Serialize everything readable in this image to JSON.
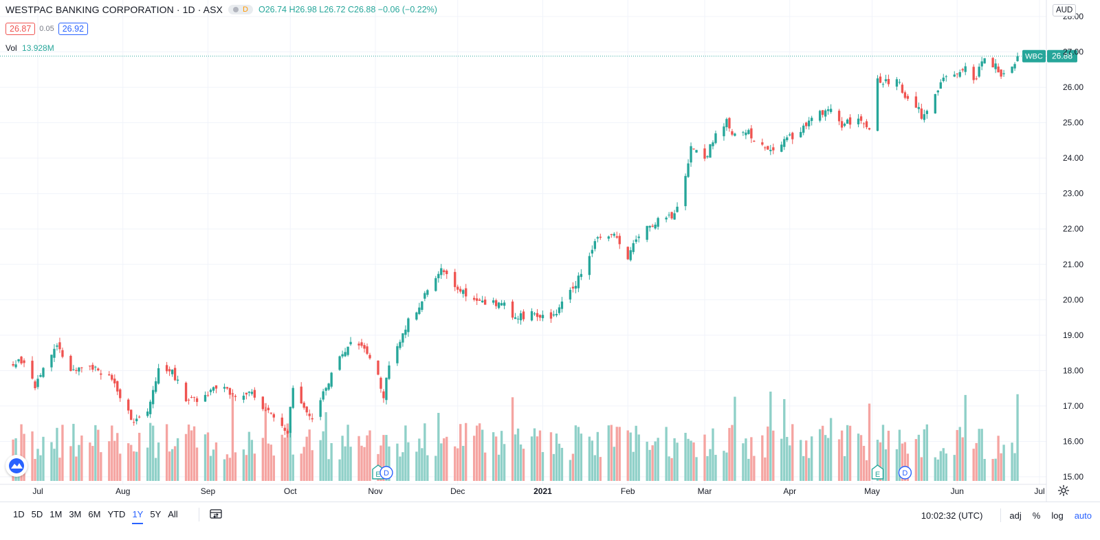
{
  "header": {
    "symbol_title": "WESTPAC BANKING CORPORATION · 1D · ASX",
    "data_badge": "D",
    "ohlc": {
      "open_label": "O",
      "open": "26.74",
      "high_label": "H",
      "high": "26.98",
      "low_label": "L",
      "low": "26.72",
      "close_label": "C",
      "close": "26.88",
      "change": "−0.06 (−0.22%)"
    },
    "bid": "26.87",
    "spread": "0.05",
    "ask": "26.92",
    "volume_label": "Vol",
    "volume_value": "13.928M"
  },
  "price_axis": {
    "currency_button": "AUD",
    "ticks": [
      "28.00",
      "27.00",
      "26.00",
      "25.00",
      "24.00",
      "23.00",
      "22.00",
      "21.00",
      "20.00",
      "19.00",
      "18.00",
      "17.00",
      "16.00",
      "15.00"
    ],
    "last_price_symbol": "WBC",
    "last_price": "26.88"
  },
  "event_markers": [
    {
      "type": "E",
      "date": "Nov 2"
    },
    {
      "type": "D",
      "date": "Nov 5"
    },
    {
      "type": "E",
      "date": "May 3"
    },
    {
      "type": "D",
      "date": "May 13"
    }
  ],
  "toolbar": {
    "ranges": [
      "1D",
      "5D",
      "1M",
      "3M",
      "6M",
      "YTD",
      "1Y",
      "5Y",
      "All"
    ],
    "active_range": "1Y",
    "clock": "10:02:32 (UTC)",
    "adj": "adj",
    "percent": "%",
    "log": "log",
    "auto": "auto"
  },
  "colors": {
    "up": "#26a69a",
    "down": "#ef5350",
    "up_volume": "#8fd0c8",
    "down_volume": "#f5a4a1",
    "grid": "#f0f3fa",
    "accent": "#2962ff"
  },
  "chart_data": {
    "type": "candlestick",
    "title": "WESTPAC BANKING CORPORATION · 1D · ASX",
    "currency": "AUD",
    "ylim": [
      15.0,
      28.0
    ],
    "grid": true,
    "x_tick_labels": [
      "Jul",
      "Aug",
      "Sep",
      "Oct",
      "Nov",
      "Dec",
      "2021",
      "Feb",
      "Mar",
      "Apr",
      "May",
      "Jun",
      "Jul"
    ],
    "anchors": [
      [
        "2020-06-22",
        18.2
      ],
      [
        "2020-06-26",
        18.3
      ],
      [
        "2020-06-30",
        17.6
      ],
      [
        "2020-07-06",
        18.4
      ],
      [
        "2020-07-08",
        18.8
      ],
      [
        "2020-07-13",
        17.9
      ],
      [
        "2020-07-20",
        18.1
      ],
      [
        "2020-07-27",
        17.9
      ],
      [
        "2020-07-31",
        17.3
      ],
      [
        "2020-08-04",
        16.6
      ],
      [
        "2020-08-10",
        16.8
      ],
      [
        "2020-08-14",
        18.1
      ],
      [
        "2020-08-19",
        18.0
      ],
      [
        "2020-08-24",
        17.1
      ],
      [
        "2020-08-31",
        17.3
      ],
      [
        "2020-09-04",
        17.6
      ],
      [
        "2020-09-10",
        17.3
      ],
      [
        "2020-09-17",
        17.4
      ],
      [
        "2020-09-22",
        16.9
      ],
      [
        "2020-09-25",
        16.7
      ],
      [
        "2020-09-30",
        16.3
      ],
      [
        "2020-10-02",
        17.6
      ],
      [
        "2020-10-07",
        16.9
      ],
      [
        "2020-10-09",
        16.6
      ],
      [
        "2020-10-14",
        17.5
      ],
      [
        "2020-10-19",
        18.4
      ],
      [
        "2020-10-23",
        18.7
      ],
      [
        "2020-10-28",
        18.6
      ],
      [
        "2020-11-02",
        17.8
      ],
      [
        "2020-11-04",
        17.3
      ],
      [
        "2020-11-06",
        18.1
      ],
      [
        "2020-11-09",
        18.7
      ],
      [
        "2020-11-13",
        19.4
      ],
      [
        "2020-11-20",
        20.2
      ],
      [
        "2020-11-25",
        20.9
      ],
      [
        "2020-11-30",
        20.3
      ],
      [
        "2020-12-04",
        20.2
      ],
      [
        "2020-12-11",
        19.9
      ],
      [
        "2020-12-17",
        19.9
      ],
      [
        "2020-12-22",
        19.5
      ],
      [
        "2020-12-29",
        19.6
      ],
      [
        "2021-01-05",
        19.5
      ],
      [
        "2021-01-08",
        20.0
      ],
      [
        "2021-01-13",
        20.4
      ],
      [
        "2021-01-18",
        21.3
      ],
      [
        "2021-01-22",
        21.8
      ],
      [
        "2021-01-27",
        21.8
      ],
      [
        "2021-02-01",
        21.2
      ],
      [
        "2021-02-03",
        21.5
      ],
      [
        "2021-02-08",
        22.0
      ],
      [
        "2021-02-12",
        22.3
      ],
      [
        "2021-02-17",
        22.4
      ],
      [
        "2021-02-19",
        22.7
      ],
      [
        "2021-02-22",
        23.6
      ],
      [
        "2021-02-24",
        24.3
      ],
      [
        "2021-03-01",
        24.0
      ],
      [
        "2021-03-05",
        24.6
      ],
      [
        "2021-03-09",
        25.0
      ],
      [
        "2021-03-12",
        24.6
      ],
      [
        "2021-03-17",
        24.7
      ],
      [
        "2021-03-22",
        24.4
      ],
      [
        "2021-03-26",
        24.2
      ],
      [
        "2021-03-31",
        24.5
      ],
      [
        "2021-04-06",
        24.9
      ],
      [
        "2021-04-12",
        25.3
      ],
      [
        "2021-04-16",
        25.4
      ],
      [
        "2021-04-20",
        24.9
      ],
      [
        "2021-04-26",
        25.2
      ],
      [
        "2021-04-30",
        24.9
      ],
      [
        "2021-05-03",
        26.2
      ],
      [
        "2021-05-07",
        26.1
      ],
      [
        "2021-05-10",
        26.3
      ],
      [
        "2021-05-13",
        25.6
      ],
      [
        "2021-05-17",
        25.5
      ],
      [
        "2021-05-19",
        25.2
      ],
      [
        "2021-05-24",
        25.8
      ],
      [
        "2021-05-28",
        26.3
      ],
      [
        "2021-06-02",
        26.4
      ],
      [
        "2021-06-04",
        26.5
      ],
      [
        "2021-06-08",
        26.2
      ],
      [
        "2021-06-10",
        26.8
      ],
      [
        "2021-06-15",
        26.6
      ],
      [
        "2021-06-18",
        26.3
      ],
      [
        "2021-06-21",
        26.6
      ],
      [
        "2021-06-23",
        26.88
      ]
    ]
  }
}
